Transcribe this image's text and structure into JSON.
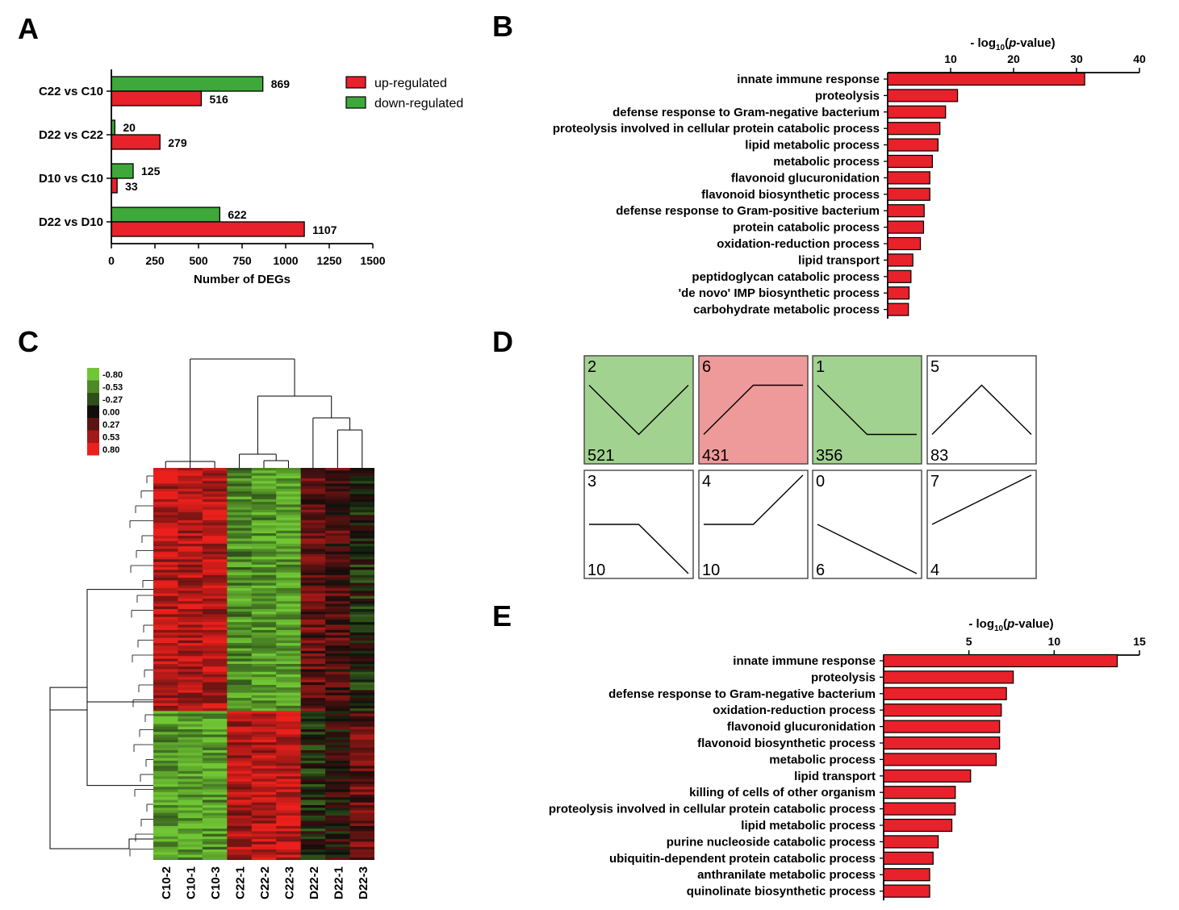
{
  "panels": {
    "A": "A",
    "B": "B",
    "C": "C",
    "D": "D",
    "E": "E"
  },
  "colors": {
    "up": "#e8212a",
    "down": "#3ea83a",
    "green_box": "#a2d28f",
    "red_box": "#ef9a9a"
  },
  "chart_data": [
    {
      "panel": "A",
      "type": "bar",
      "orientation": "horizontal",
      "categories": [
        "C22 vs C10",
        "D22 vs C22",
        "D10 vs C10",
        "D22 vs D10"
      ],
      "series": [
        {
          "name": "down-regulated",
          "values": [
            869,
            20,
            125,
            622
          ]
        },
        {
          "name": "up-regulated",
          "values": [
            516,
            279,
            33,
            1107
          ]
        }
      ],
      "legend": [
        "up-regulated",
        "down-regulated"
      ],
      "legend_position": "top-right",
      "xlabel": "Number of DEGs",
      "xlim": [
        0,
        1500
      ],
      "xticks": [
        "0",
        "250",
        "500",
        "750",
        "1000",
        "1250",
        "1500"
      ]
    },
    {
      "panel": "B",
      "type": "bar",
      "orientation": "horizontal",
      "xlabel_parts": [
        "- log",
        "10",
        "(",
        "p",
        "-value)"
      ],
      "xlim": [
        0,
        40
      ],
      "xticks": [
        "10",
        "20",
        "30",
        "40"
      ],
      "categories": [
        "innate immune response",
        "proteolysis",
        "defense response to Gram-negative bacterium",
        "proteolysis involved in cellular protein catabolic process",
        "lipid metabolic process",
        "metabolic process",
        "flavonoid glucuronidation",
        "flavonoid biosynthetic process",
        "defense response to Gram-positive bacterium",
        "protein catabolic process",
        "oxidation-reduction process",
        "lipid transport",
        "peptidoglycan catabolic process",
        "'de novo' IMP biosynthetic process",
        "carbohydrate metabolic process"
      ],
      "values": [
        31.3,
        11.1,
        9.2,
        8.3,
        8.0,
        7.1,
        6.7,
        6.7,
        5.8,
        5.7,
        5.2,
        4.0,
        3.7,
        3.4,
        3.3
      ]
    },
    {
      "panel": "C",
      "type": "heatmap",
      "samples": [
        "C10-2",
        "C10-1",
        "C10-3",
        "C22-1",
        "C22-2",
        "C22-3",
        "D22-2",
        "D22-1",
        "D22-3"
      ],
      "color_scale": [
        "-0.80",
        "-0.53",
        "-0.27",
        "0.00",
        "0.27",
        "0.53",
        "0.80"
      ],
      "clusters": [
        {
          "rows": "upper",
          "values": [
            0.6,
            0.6,
            0.6,
            -0.55,
            -0.6,
            -0.65,
            0.3,
            0.2,
            -0.1
          ]
        },
        {
          "rows": "lower",
          "values": [
            -0.6,
            -0.65,
            -0.6,
            0.55,
            0.6,
            0.65,
            -0.1,
            0.05,
            0.3
          ]
        }
      ]
    },
    {
      "panel": "D",
      "type": "profiles",
      "profiles": [
        {
          "id": "2",
          "count": "521",
          "highlight": "green",
          "points": [
            0.5,
            -0.5,
            0.5
          ]
        },
        {
          "id": "6",
          "count": "431",
          "highlight": "red",
          "points": [
            -0.5,
            0.5,
            0.5
          ]
        },
        {
          "id": "1",
          "count": "356",
          "highlight": "green",
          "points": [
            0.5,
            -0.5,
            -0.5
          ]
        },
        {
          "id": "5",
          "count": "83",
          "highlight": "none",
          "points": [
            -0.5,
            0.5,
            -0.5
          ]
        },
        {
          "id": "3",
          "count": "10",
          "highlight": "none",
          "points": [
            0,
            0,
            -1
          ]
        },
        {
          "id": "4",
          "count": "10",
          "highlight": "none",
          "points": [
            0,
            0,
            1
          ]
        },
        {
          "id": "0",
          "count": "6",
          "highlight": "none",
          "points": [
            0,
            -0.5,
            -1
          ]
        },
        {
          "id": "7",
          "count": "4",
          "highlight": "none",
          "points": [
            0,
            0.5,
            1
          ]
        }
      ]
    },
    {
      "panel": "E",
      "type": "bar",
      "orientation": "horizontal",
      "xlabel_parts": [
        "- log",
        "10",
        "(",
        "p",
        "-value)"
      ],
      "xlim": [
        0,
        15
      ],
      "xticks": [
        "5",
        "10",
        "15"
      ],
      "categories": [
        "innate immune response",
        "proteolysis",
        "defense response to Gram-negative bacterium",
        "oxidation-reduction process",
        "flavonoid glucuronidation",
        "flavonoid biosynthetic process",
        "metabolic process",
        "lipid transport",
        "killing of cells of other organism",
        "proteolysis involved in cellular protein catabolic process",
        "lipid metabolic process",
        "purine nucleoside catabolic process",
        "ubiquitin-dependent protein catabolic process",
        "anthranilate metabolic process",
        "quinolinate biosynthetic process"
      ],
      "values": [
        13.7,
        7.6,
        7.2,
        6.9,
        6.8,
        6.8,
        6.6,
        5.1,
        4.2,
        4.2,
        4.0,
        3.2,
        2.9,
        2.7,
        2.7
      ]
    }
  ]
}
